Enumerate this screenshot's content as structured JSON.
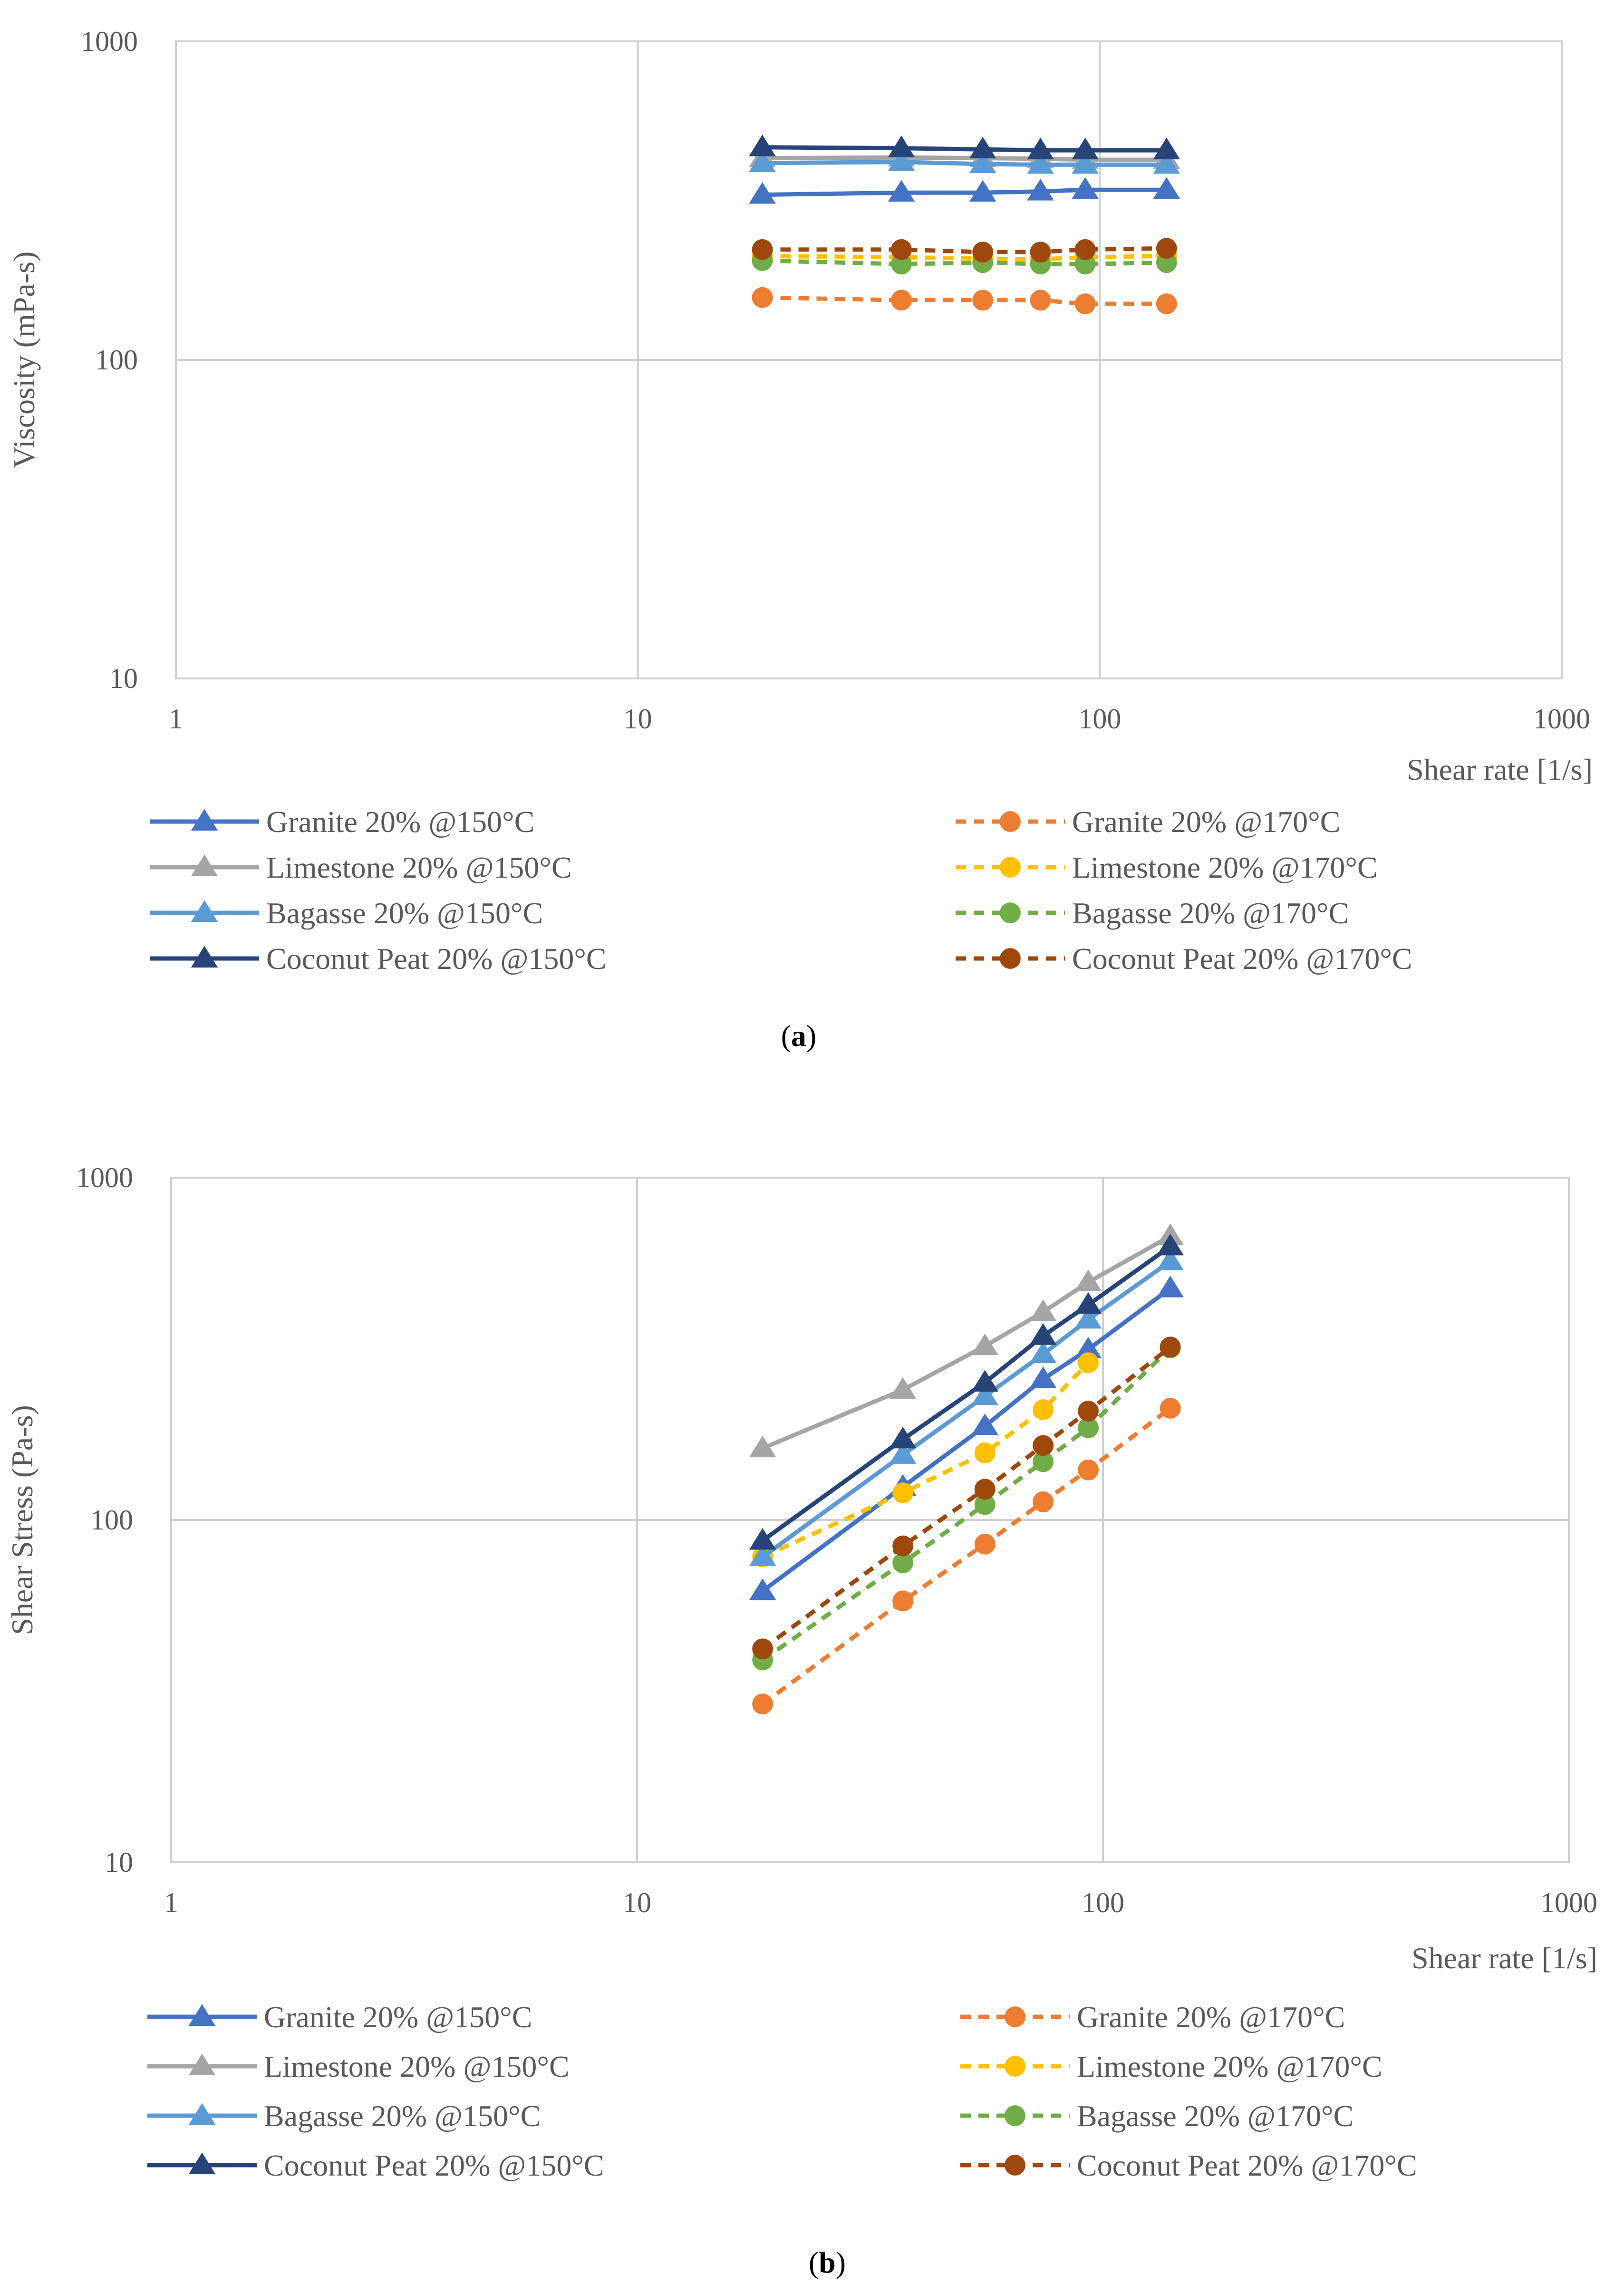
{
  "palette": {
    "Granite 20% @150°C": "#4472C4",
    "Limestone 20% @150°C": "#A5A5A5",
    "Bagasse 20% @150°C": "#5B9BD5",
    "Coconut Peat 20% @150°C": "#264478",
    "Granite 20% @170°C": "#ED7D31",
    "Limestone 20% @170°C": "#FFC000",
    "Bagasse 20% @170°C": "#70AD47",
    "Coconut Peat 20% @170°C": "#9E480E"
  },
  "chart_data": [
    {
      "type": "line",
      "panel": "a",
      "caption_letter": "a",
      "title": "",
      "xlabel": "Shear rate [1/s]",
      "ylabel": "Viscosity (mPa-s)",
      "xscale": "log",
      "yscale": "log",
      "xlim": [
        1,
        1000
      ],
      "ylim": [
        10,
        1000
      ],
      "xticks": [
        "1",
        "10",
        "100",
        "1000"
      ],
      "yticks": [
        "10",
        "100",
        "1000"
      ],
      "grid": true,
      "legend_position": "bottom",
      "series": [
        {
          "name": "Granite 20% @150°C",
          "style": "solid",
          "marker": "triangle",
          "x": [
            18.6,
            37.2,
            55.8,
            74.4,
            93,
            139.5
          ],
          "y": [
            330,
            335,
            335,
            338,
            342,
            342
          ]
        },
        {
          "name": "Granite 20% @170°C",
          "style": "dashed",
          "marker": "circle",
          "x": [
            18.6,
            37.2,
            55.8,
            74.4,
            93,
            139.5
          ],
          "y": [
            157,
            154,
            154,
            154,
            150,
            150
          ]
        },
        {
          "name": "Limestone 20% @150°C",
          "style": "solid",
          "marker": "triangle",
          "x": [
            18.6,
            37.2,
            55.8,
            74.4,
            93,
            139.5
          ],
          "y": [
            430,
            432,
            430,
            428,
            425,
            425
          ]
        },
        {
          "name": "Limestone 20% @170°C",
          "style": "dashed",
          "marker": "circle",
          "x": [
            18.6,
            37.2,
            55.8,
            74.4,
            93,
            139.5
          ],
          "y": [
            212,
            210,
            208,
            207,
            210,
            212
          ]
        },
        {
          "name": "Bagasse 20% @150°C",
          "style": "solid",
          "marker": "triangle",
          "x": [
            18.6,
            37.2,
            55.8,
            74.4,
            93,
            139.5
          ],
          "y": [
            415,
            418,
            412,
            410,
            410,
            410
          ]
        },
        {
          "name": "Bagasse 20% @170°C",
          "style": "dashed",
          "marker": "circle",
          "x": [
            18.6,
            37.2,
            55.8,
            74.4,
            93,
            139.5
          ],
          "y": [
            205,
            200,
            202,
            200,
            200,
            202
          ]
        },
        {
          "name": "Coconut Peat 20% @150°C",
          "style": "solid",
          "marker": "triangle",
          "x": [
            18.6,
            37.2,
            55.8,
            74.4,
            93,
            139.5
          ],
          "y": [
            465,
            462,
            458,
            455,
            455,
            455
          ]
        },
        {
          "name": "Coconut Peat 20% @170°C",
          "style": "dashed",
          "marker": "circle",
          "x": [
            18.6,
            37.2,
            55.8,
            74.4,
            93,
            139.5
          ],
          "y": [
            222,
            222,
            218,
            218,
            222,
            224
          ]
        }
      ]
    },
    {
      "type": "line",
      "panel": "b",
      "caption_letter": "b",
      "title": "",
      "xlabel": "Shear rate [1/s]",
      "ylabel": "Shear Stress (Pa-s)",
      "xscale": "log",
      "yscale": "log",
      "xlim": [
        1,
        1000
      ],
      "ylim": [
        10,
        1000
      ],
      "xticks": [
        "1",
        "10",
        "100",
        "1000"
      ],
      "yticks": [
        "10",
        "100",
        "1000"
      ],
      "grid": true,
      "legend_position": "bottom",
      "series": [
        {
          "name": "Granite 20% @150°C",
          "style": "solid",
          "marker": "triangle",
          "x": [
            18.6,
            37.2,
            55.8,
            74.4,
            93,
            139.5
          ],
          "y": [
            62,
            125,
            188,
            258,
            315,
            475
          ]
        },
        {
          "name": "Granite 20% @170°C",
          "style": "dashed",
          "marker": "circle",
          "x": [
            18.6,
            37.2,
            55.8,
            74.4,
            93,
            139.5
          ],
          "y": [
            29,
            58,
            85,
            113,
            140,
            212
          ]
        },
        {
          "name": "Limestone 20% @150°C",
          "style": "solid",
          "marker": "triangle",
          "x": [
            18.6,
            37.2,
            55.8,
            74.4,
            93,
            139.5
          ],
          "y": [
            162,
            240,
            322,
            405,
            495,
            675
          ]
        },
        {
          "name": "Limestone 20% @170°C",
          "style": "dashed",
          "marker": "circle",
          "x": [
            18.6,
            37.2,
            55.8,
            74.4,
            93
          ],
          "y": [
            78,
            120,
            157,
            210,
            288
          ]
        },
        {
          "name": "Bagasse 20% @150°C",
          "style": "solid",
          "marker": "triangle",
          "x": [
            18.6,
            37.2,
            55.8,
            74.4,
            93,
            139.5
          ],
          "y": [
            78,
            155,
            230,
            305,
            385,
            570
          ]
        },
        {
          "name": "Bagasse 20% @170°C",
          "style": "dashed",
          "marker": "circle",
          "x": [
            18.6,
            37.2,
            55.8,
            74.4,
            93,
            139.5
          ],
          "y": [
            39,
            75,
            111,
            148,
            186,
            318
          ]
        },
        {
          "name": "Coconut Peat 20% @150°C",
          "style": "solid",
          "marker": "triangle",
          "x": [
            18.6,
            37.2,
            55.8,
            74.4,
            93,
            139.5
          ],
          "y": [
            87,
            172,
            252,
            345,
            425,
            630
          ]
        },
        {
          "name": "Coconut Peat 20% @170°C",
          "style": "dashed",
          "marker": "circle",
          "x": [
            18.6,
            37.2,
            55.8,
            74.4,
            93,
            139.5
          ],
          "y": [
            42,
            84,
            123,
            165,
            208,
            320
          ]
        }
      ]
    }
  ]
}
